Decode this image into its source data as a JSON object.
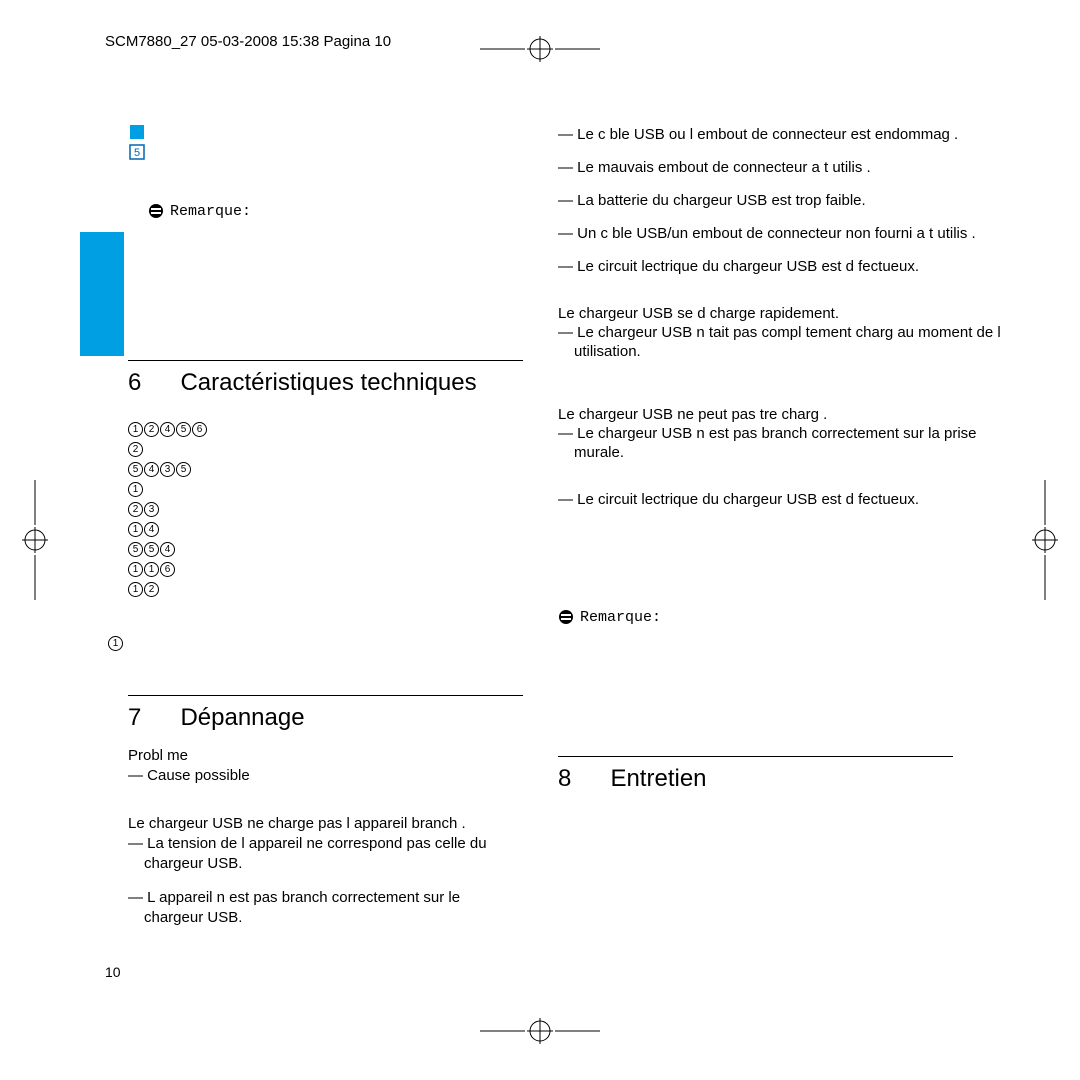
{
  "header": "SCM7880_27  05-03-2008  15:38  Pagina 10",
  "page_number": "10",
  "note_label": "Remarque:",
  "colors": {
    "accent_blue": "#009fe3",
    "icon_outline": "#0066b3",
    "black": "#000000",
    "white": "#ffffff"
  },
  "icon_box_number": "5",
  "sections": {
    "s6": {
      "num": "6",
      "title": "Caractéristiques techniques"
    },
    "s7": {
      "num": "7",
      "title": "Dépannage"
    },
    "s8": {
      "num": "8",
      "title": "Entretien"
    }
  },
  "circled_rows": [
    [
      1,
      2,
      4,
      5,
      6
    ],
    [
      2
    ],
    [
      5,
      4,
      3,
      5
    ],
    [
      1
    ],
    [
      2,
      3
    ],
    [
      1,
      4
    ],
    [
      5,
      5,
      4
    ],
    [
      1,
      1,
      6
    ],
    [
      1,
      2
    ]
  ],
  "circled_single": "1",
  "problem": {
    "label": "Probl me",
    "sub": "— Cause possible",
    "p1": "Le chargeur USB ne charge pas l appareil branch .",
    "c1": "— La tension de l appareil ne correspond pas   celle du chargeur USB.",
    "c2": "— L appareil n est pas branch  correctement sur le chargeur USB."
  },
  "right": {
    "r1": "— Le c ble USB ou l embout de connecteur est endommag .",
    "r2": "— Le mauvais embout de connecteur a  t  utilis .",
    "r3": "— La batterie du chargeur USB est trop faible.",
    "r4": "— Un c ble USB/un embout de connecteur non fourni a  t  utilis .",
    "r5": "— Le circuit  lectrique du chargeur USB est d fectueux.",
    "p2": "Le chargeur USB se d charge rapidement.",
    "c3": "— Le chargeur USB n  tait pas compl tement charg  au moment de l utilisation.",
    "p3": "Le chargeur USB ne peut pas  tre charg .",
    "c4": "— Le chargeur USB n est pas branch  correctement sur la prise murale.",
    "c5": "— Le circuit  lectrique du chargeur USB est d fectueux."
  }
}
